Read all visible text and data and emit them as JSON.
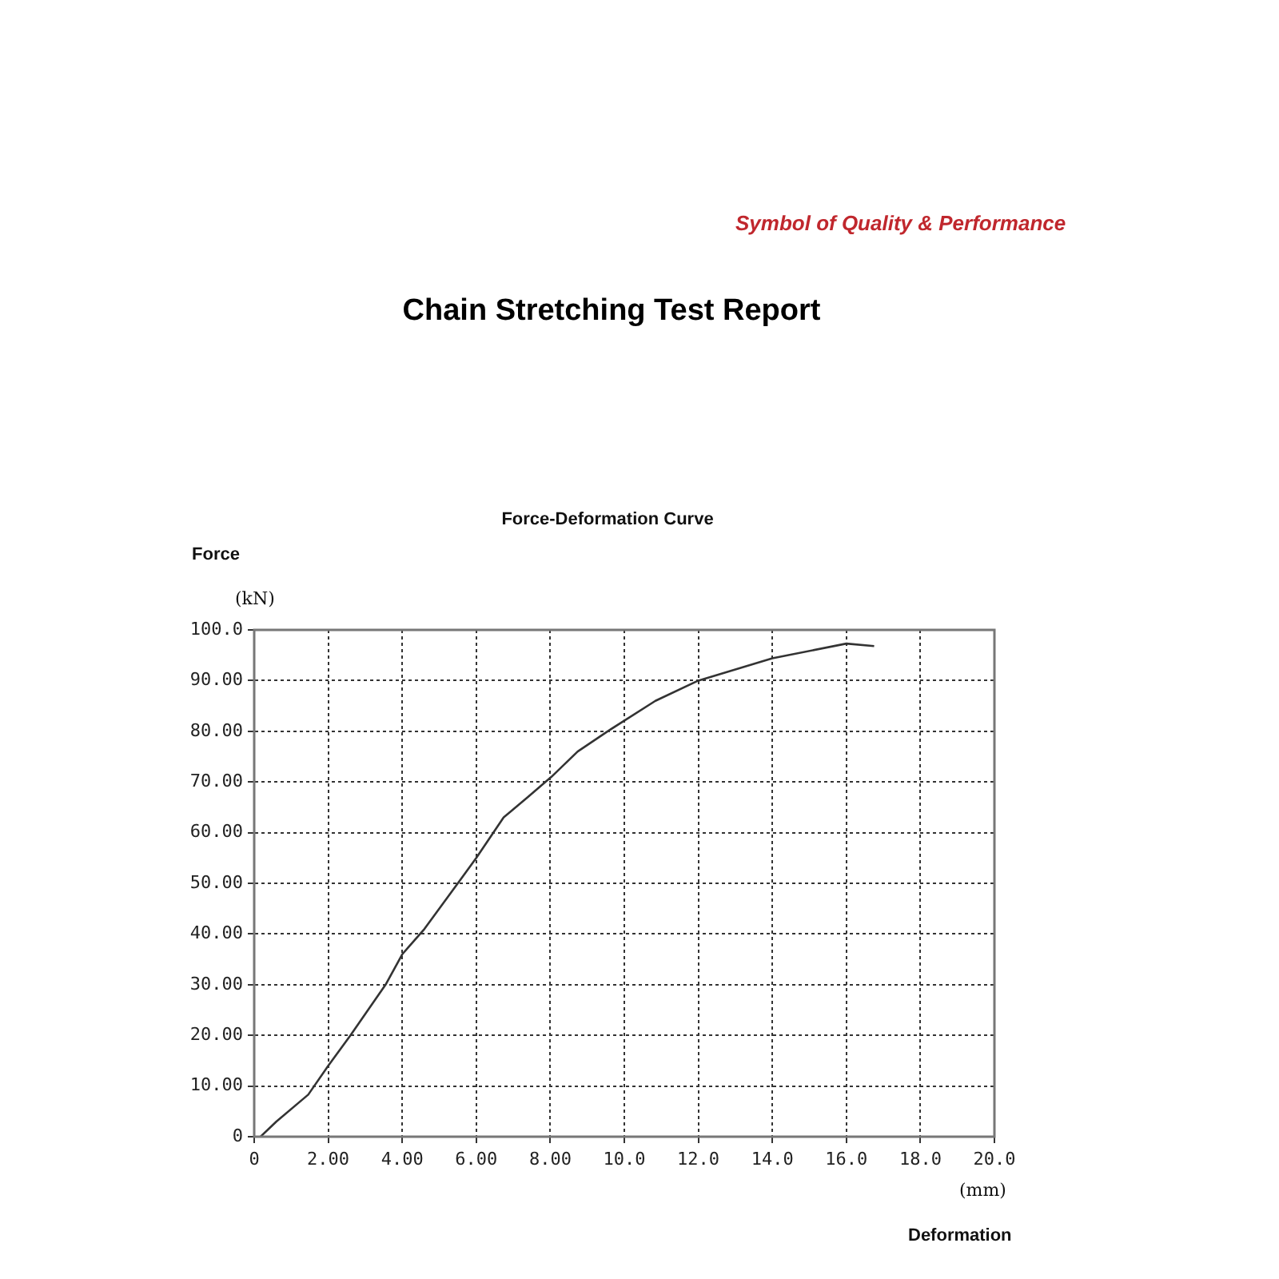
{
  "chart_data": {
    "type": "line",
    "title": "Chain Stretching Test Report",
    "subtitle": "Force-Deformation Curve",
    "xlabel": "Deformation",
    "ylabel": "Force",
    "annotations": [
      "Symbol of Quality & Performance",
      "(kN)",
      "(mm)"
    ],
    "x": [
      0.17,
      0.6,
      1.46,
      2.0,
      2.6,
      3.55,
      4.0,
      4.6,
      5.6,
      6.0,
      6.74,
      7.39,
      8.03,
      8.74,
      9.55,
      10.84,
      12.0,
      14.0,
      16.0,
      16.75
    ],
    "series": [
      {
        "color": "#333333",
        "values": [
          0,
          3,
          8.3,
          14,
          20,
          30,
          36,
          41,
          51,
          55,
          63,
          67,
          71,
          76,
          80,
          86,
          90,
          94.4,
          97.3,
          96.8
        ]
      }
    ],
    "xlim": [
      0,
      20
    ],
    "ylim": [
      0,
      100
    ],
    "xticks": [
      0,
      {
        "value": 2,
        "label": "2.00"
      },
      {
        "value": 4,
        "label": "4.00"
      },
      {
        "value": 6,
        "label": "6.00"
      },
      {
        "value": 8,
        "label": "8.00"
      },
      {
        "value": 10,
        "label": "10.0"
      },
      {
        "value": 12,
        "label": "12.0"
      },
      {
        "value": 14,
        "label": "14.0"
      },
      {
        "value": 16,
        "label": "16.0"
      },
      {
        "value": 18,
        "label": "18.0"
      },
      {
        "value": 20,
        "label": "20.0"
      }
    ],
    "yticks": [
      0,
      {
        "value": 10,
        "label": "10.00"
      },
      {
        "value": 20,
        "label": "20.00"
      },
      {
        "value": 30,
        "label": "30.00"
      },
      {
        "value": 40,
        "label": "40.00"
      },
      {
        "value": 50,
        "label": "50.00"
      },
      {
        "value": 60,
        "label": "60.00"
      },
      {
        "value": 70,
        "label": "70.00"
      },
      {
        "value": 80,
        "label": "80.00"
      },
      {
        "value": 90,
        "label": "90.00"
      },
      {
        "value": 100,
        "label": "100.0"
      }
    ],
    "grid": true,
    "legend": false,
    "marker": "none",
    "line_style": "solid"
  }
}
